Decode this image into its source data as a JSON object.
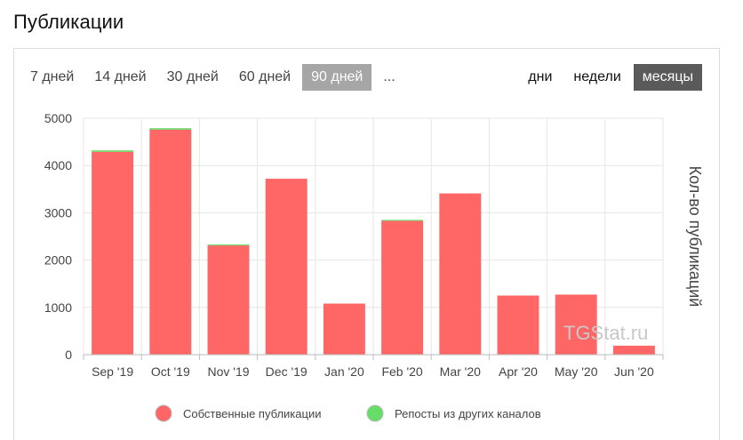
{
  "page": {
    "title": "Публикации"
  },
  "range_tabs": [
    {
      "label": "7 дней",
      "active": false
    },
    {
      "label": "14 дней",
      "active": false
    },
    {
      "label": "30 дней",
      "active": false
    },
    {
      "label": "60 дней",
      "active": false
    },
    {
      "label": "90 дней",
      "active": true
    },
    {
      "label": "...",
      "active": false
    }
  ],
  "group_tabs": [
    {
      "label": "дни",
      "active": false
    },
    {
      "label": "недели",
      "active": false
    },
    {
      "label": "месяцы",
      "active": true
    }
  ],
  "watermark": "TGStat.ru",
  "colors": {
    "own": "#ff6666",
    "reposts": "#66dd66",
    "grid": "#e6e6e6",
    "axis": "#bbbbbb"
  },
  "chart_data": {
    "type": "bar",
    "stacked": true,
    "categories": [
      "Sep '19",
      "Oct '19",
      "Nov '19",
      "Dec '19",
      "Jan '20",
      "Feb '20",
      "Mar '20",
      "Apr '20",
      "May '20",
      "Jun '20"
    ],
    "series": [
      {
        "name": "Собственные публикации",
        "color": "#ff6666",
        "values": [
          4290,
          4760,
          2310,
          3720,
          1080,
          2830,
          3410,
          1250,
          1270,
          190
        ]
      },
      {
        "name": "Репосты из других каналов",
        "color": "#66dd66",
        "values": [
          30,
          30,
          20,
          0,
          0,
          20,
          0,
          0,
          0,
          0
        ]
      }
    ],
    "ylabel": "Кол-во публикаций",
    "ylim": [
      0,
      5000
    ],
    "yticks": [
      0,
      1000,
      2000,
      3000,
      4000,
      5000
    ],
    "grid": true,
    "legend_position": "bottom"
  }
}
